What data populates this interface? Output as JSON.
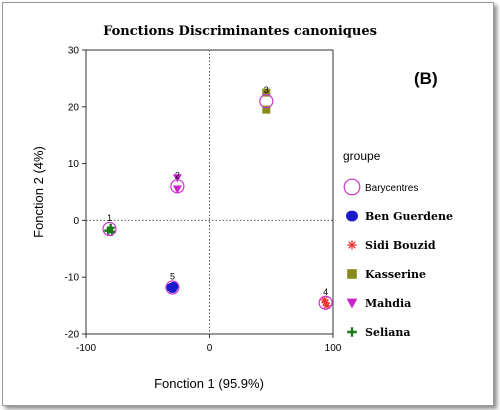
{
  "chart_data": {
    "type": "scatter",
    "title": "Fonctions Discriminantes canoniques",
    "panel_label": "(B)",
    "xlabel": "Fonction 1 (95.9%)",
    "ylabel": "Fonction 2 (4%)",
    "xlim": [
      -100,
      100
    ],
    "ylim": [
      -20,
      30
    ],
    "xticks": [
      -100,
      0,
      100
    ],
    "yticks": [
      -20,
      -10,
      0,
      10,
      20,
      30
    ],
    "reference_lines": {
      "x": 0,
      "y": 0,
      "style": "dotted"
    },
    "legend_title": "groupe",
    "legend_position": "right",
    "series": [
      {
        "name": "Barycentres",
        "marker": "open-circle",
        "color": "#cc33cc",
        "points": [
          {
            "x": -81,
            "y": -1.5,
            "label": "1"
          },
          {
            "x": -30,
            "y": -11.8,
            "label": "5"
          },
          {
            "x": 46,
            "y": 21,
            "label": "3"
          },
          {
            "x": -26,
            "y": 6,
            "label": "2"
          },
          {
            "x": 94,
            "y": -14.5,
            "label": "4"
          }
        ]
      },
      {
        "name": "Ben Guerdene",
        "marker": "filled-circle",
        "color": "#1a1acc",
        "points": [
          {
            "x": -31,
            "y": -11.8
          },
          {
            "x": -29,
            "y": -11.6
          },
          {
            "x": -30,
            "y": -12
          }
        ]
      },
      {
        "name": "Sidi Bouzid",
        "marker": "star",
        "color": "#ee3333",
        "points": [
          {
            "x": 93,
            "y": -14
          },
          {
            "x": 95,
            "y": -15
          },
          {
            "x": 94,
            "y": -14.5
          }
        ]
      },
      {
        "name": "Kasserine",
        "marker": "square",
        "color": "#8a8a1a",
        "points": [
          {
            "x": 46,
            "y": 22.5
          },
          {
            "x": 46,
            "y": 19.5
          }
        ]
      },
      {
        "name": "Mahdia",
        "marker": "triangle-down",
        "color": "#cc22cc",
        "points": [
          {
            "x": -26,
            "y": 7.5
          },
          {
            "x": -26,
            "y": 5.5
          }
        ]
      },
      {
        "name": "Seliana",
        "marker": "plus",
        "color": "#1a7a1a",
        "points": [
          {
            "x": -82,
            "y": -1.8
          },
          {
            "x": -80,
            "y": -1.3
          },
          {
            "x": -79,
            "y": -2
          }
        ]
      }
    ]
  }
}
